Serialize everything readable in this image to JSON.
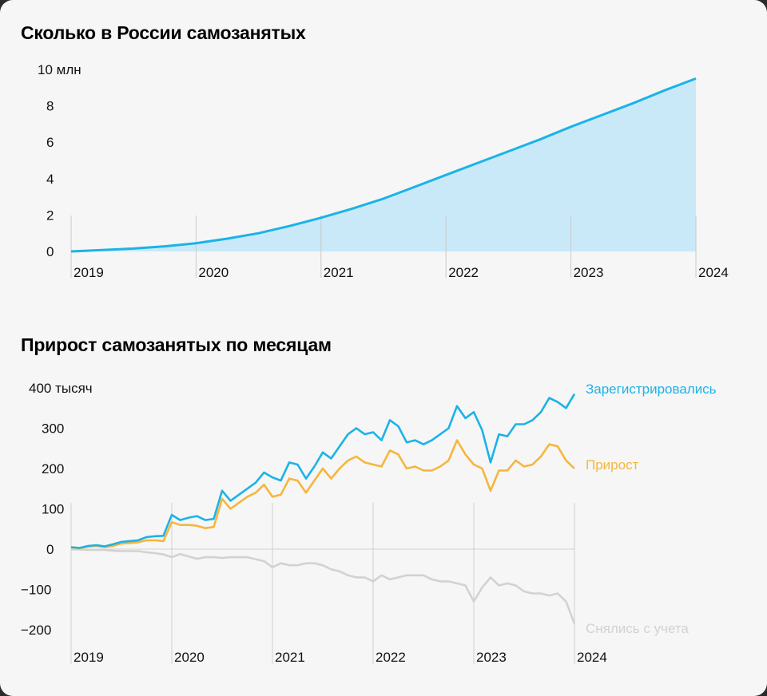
{
  "chart_data": [
    {
      "type": "area",
      "title": "Сколько в России самозанятых",
      "y_unit_label": "10 млн",
      "ylim": [
        0,
        10
      ],
      "y_ticks": [
        0,
        2,
        4,
        6,
        8,
        10
      ],
      "y_tick_labels": [
        "0",
        "2",
        "4",
        "6",
        "8",
        "10 млн"
      ],
      "x_tick_labels": [
        "2019",
        "2020",
        "2021",
        "2022",
        "2023",
        "2024"
      ],
      "xlim": [
        2019,
        2024
      ],
      "grid": "vertical year lines",
      "colors": {
        "line": "#1bb3e8",
        "fill": "#c9e9f8"
      },
      "series": [
        {
          "x": [
            2019.0,
            2019.25,
            2019.5,
            2019.75,
            2020.0,
            2020.25,
            2020.5,
            2020.75,
            2021.0,
            2021.25,
            2021.5,
            2021.75,
            2022.0,
            2022.25,
            2022.5,
            2022.75,
            2023.0,
            2023.25,
            2023.5,
            2023.75,
            2024.0
          ],
          "values": [
            0.0,
            0.08,
            0.16,
            0.28,
            0.45,
            0.7,
            1.0,
            1.4,
            1.85,
            2.35,
            2.9,
            3.55,
            4.2,
            4.85,
            5.5,
            6.15,
            6.85,
            7.5,
            8.15,
            8.85,
            9.5
          ]
        }
      ]
    },
    {
      "type": "line",
      "title": "Прирост самозанятых по месяцам",
      "y_unit_label": "400 тысяч",
      "ylim": [
        -210,
        410
      ],
      "y_ticks": [
        -200,
        -100,
        0,
        100,
        200,
        300,
        400
      ],
      "y_tick_labels": [
        "−200",
        "−100",
        "0",
        "100",
        "200",
        "300",
        "400 тысяч"
      ],
      "x_tick_labels": [
        "2019",
        "2020",
        "2021",
        "2022",
        "2023",
        "2024"
      ],
      "xlim": [
        2019,
        2024
      ],
      "grid": "vertical year lines",
      "x_step_months": 1,
      "series": [
        {
          "name": "Зарегистрировались",
          "color": "#1bb3e8",
          "values": [
            5,
            3,
            8,
            10,
            7,
            12,
            18,
            20,
            22,
            30,
            32,
            33,
            85,
            72,
            78,
            82,
            72,
            75,
            145,
            120,
            135,
            150,
            165,
            190,
            178,
            170,
            215,
            210,
            175,
            205,
            240,
            225,
            255,
            285,
            300,
            285,
            290,
            270,
            320,
            305,
            265,
            270,
            260,
            270,
            285,
            300,
            355,
            325,
            340,
            295,
            215,
            285,
            280,
            310,
            310,
            320,
            340,
            375,
            365,
            350,
            385
          ]
        },
        {
          "name": "Прирост",
          "color": "#f5b63e",
          "values": [
            4,
            2,
            6,
            8,
            5,
            8,
            14,
            15,
            17,
            22,
            22,
            20,
            67,
            60,
            60,
            58,
            52,
            55,
            125,
            100,
            115,
            130,
            140,
            160,
            130,
            135,
            175,
            170,
            140,
            170,
            200,
            175,
            200,
            220,
            230,
            215,
            210,
            205,
            245,
            235,
            200,
            205,
            195,
            195,
            205,
            220,
            270,
            235,
            210,
            200,
            145,
            195,
            195,
            220,
            205,
            210,
            230,
            260,
            255,
            220,
            200
          ]
        },
        {
          "name": "Снялись с учета",
          "color": "#d2d2d2",
          "values": [
            -1,
            -1,
            -2,
            -2,
            -2,
            -4,
            -5,
            -5,
            -5,
            -8,
            -10,
            -13,
            -20,
            -12,
            -18,
            -24,
            -20,
            -20,
            -22,
            -20,
            -20,
            -20,
            -25,
            -30,
            -45,
            -35,
            -40,
            -40,
            -35,
            -35,
            -40,
            -50,
            -55,
            -65,
            -70,
            -70,
            -80,
            -65,
            -75,
            -70,
            -65,
            -65,
            -65,
            -75,
            -80,
            -80,
            -85,
            -90,
            -130,
            -95,
            -70,
            -90,
            -85,
            -90,
            -105,
            -110,
            -110,
            -115,
            -110,
            -130,
            -185
          ]
        }
      ]
    }
  ]
}
